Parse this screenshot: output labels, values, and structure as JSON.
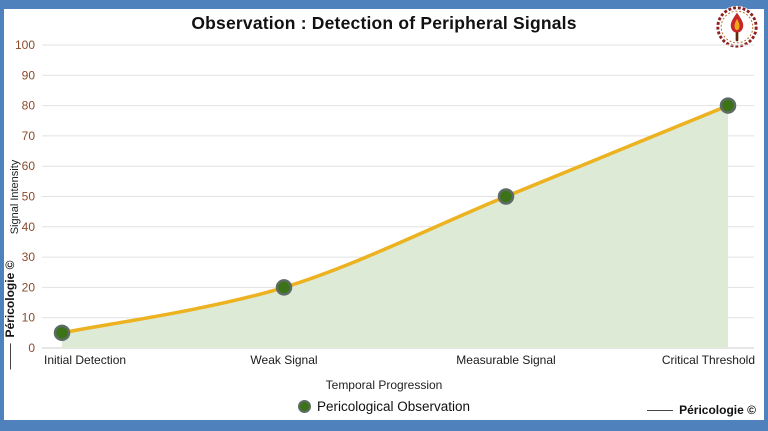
{
  "page": {
    "frame_color": "#4f81bd",
    "background": "#ffffff"
  },
  "chart_data": {
    "type": "area",
    "title": "Observation : Detection of Peripheral Signals",
    "categories": [
      "Initial Detection",
      "Weak Signal",
      "Measurable Signal",
      "Critical Threshold"
    ],
    "series": [
      {
        "name": "Pericological Observation",
        "values": [
          5,
          20,
          50,
          80
        ]
      }
    ],
    "xlabel": "Temporal Progression",
    "ylabel": "Signal Intensity",
    "ylim": [
      0,
      100
    ],
    "ytick_step": 10,
    "grid": true,
    "legend_position": "bottom",
    "style": {
      "line_color": "#ecb21f",
      "area_fill": "#dcead6",
      "point_fill": "#3d7317",
      "point_stroke": "#5c6b66",
      "grid_color": "#e2e2e2",
      "baseline_color": "#cccccc",
      "ytick_color": "#8b4a2b",
      "xtick_color": "#1a1a1a"
    }
  },
  "legend": {
    "label": "Pericological Observation"
  },
  "watermarks": {
    "left_vertical": "Péricologie ©",
    "bottom_right": "Péricologie ©"
  }
}
